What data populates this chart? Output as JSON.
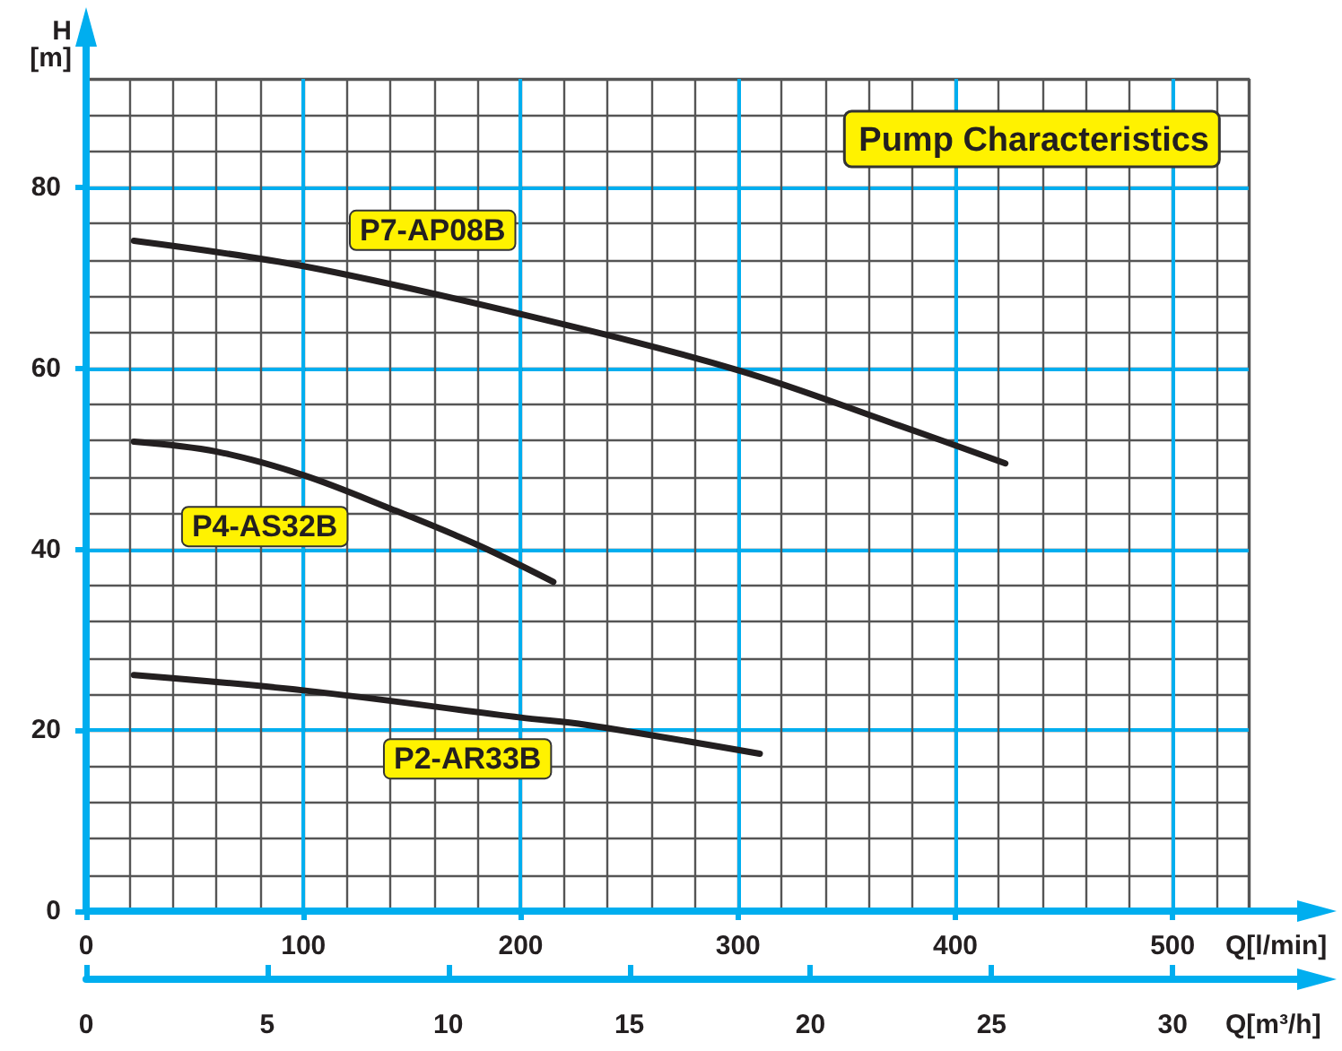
{
  "chart_data": {
    "type": "line",
    "title": "Pump Characteristics",
    "xlabel": "Q[l/min]",
    "ylabel": "H [m]",
    "x2label": "Q[m³/h]",
    "xlim": [
      0,
      535
    ],
    "xticks": [
      0,
      100,
      200,
      300,
      400,
      500
    ],
    "x2lim": [
      0,
      32.1
    ],
    "x2ticks": [
      0,
      5,
      10,
      15,
      20,
      25,
      30
    ],
    "ylim": [
      0,
      92
    ],
    "yticks": [
      0,
      20,
      40,
      60,
      80
    ],
    "grid": true,
    "marker": "none",
    "line_style": "solid",
    "series": [
      {
        "name": "P7-AP08B",
        "color": "#231f20",
        "x": [
          22,
          100,
          200,
          300,
          374,
          423
        ],
        "values": [
          74.1,
          71.3,
          66,
          59.8,
          53.7,
          49.5
        ]
      },
      {
        "name": "P4-AS32B",
        "color": "#231f20",
        "x": [
          22,
          60,
          100,
          140,
          180,
          215
        ],
        "values": [
          51.9,
          50.8,
          48.2,
          44.5,
          40.5,
          36.4
        ]
      },
      {
        "name": "P2-AR33B",
        "color": "#231f20",
        "x": [
          22,
          100,
          200,
          230,
          310
        ],
        "values": [
          26.1,
          24.4,
          21.4,
          20.6,
          17.4
        ]
      }
    ]
  }
}
